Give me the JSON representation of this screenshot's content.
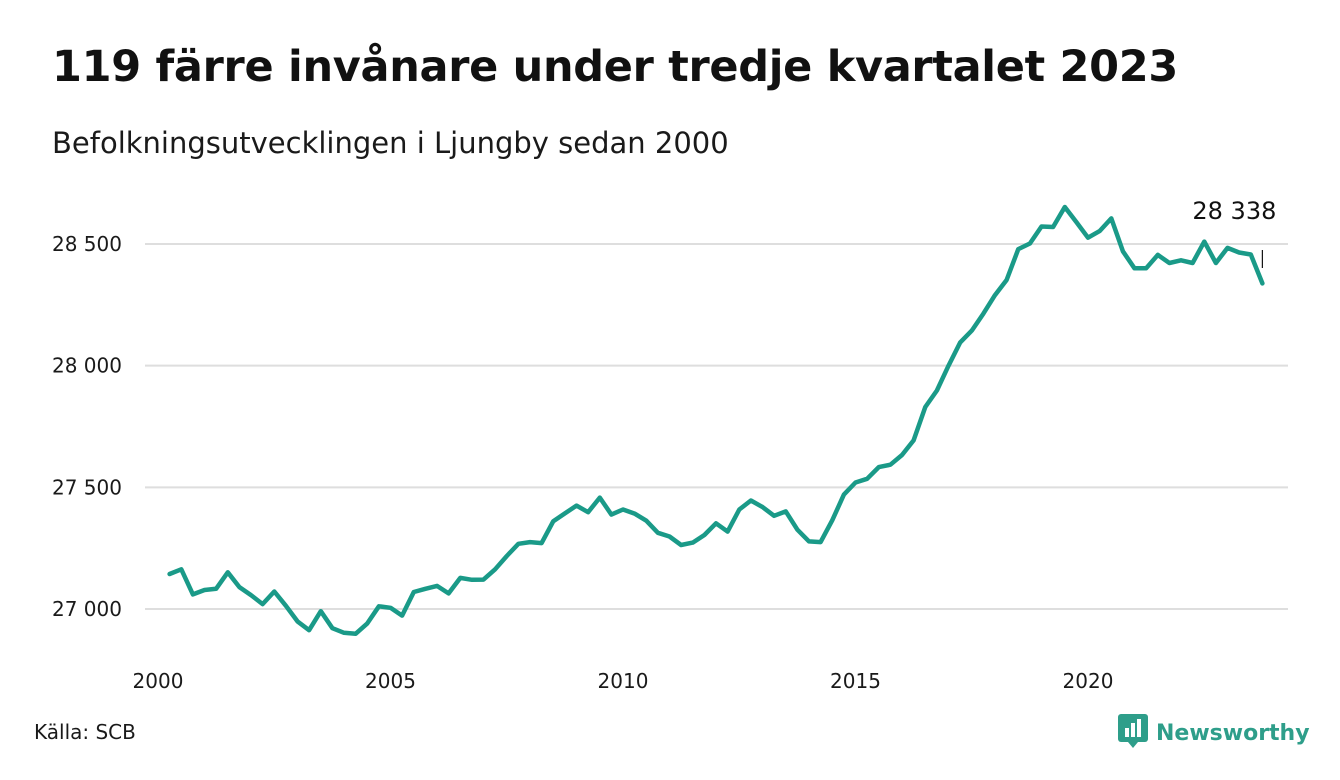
{
  "title": "119 färre invånare under tredje kvartalet 2023",
  "subtitle": "Befolkningsutvecklingen i Ljungby sedan 2000",
  "source": "Källa: SCB",
  "brand": {
    "name": "Newsworthy",
    "color": "#2e9e8a",
    "icon": "newsworthy-logo-icon"
  },
  "chart_data": {
    "type": "line",
    "title": "119 färre invånare under tredje kvartalet 2023",
    "subtitle": "Befolkningsutvecklingen i Ljungby sedan 2000",
    "xlabel": "",
    "ylabel": "",
    "x_ticks": [
      2000,
      2005,
      2010,
      2015,
      2020
    ],
    "x_tick_labels": [
      "2000",
      "2005",
      "2010",
      "2015",
      "2020"
    ],
    "y_ticks": [
      27000,
      27500,
      28000,
      28500
    ],
    "y_tick_labels": [
      "27 000",
      "27 500",
      "28 000",
      "28 500"
    ],
    "ylim": [
      26850,
      28700
    ],
    "xlim": [
      2000,
      2024.5
    ],
    "grid": "horizontal",
    "line_color": "#1a9a88",
    "annotation": {
      "x": 2023.75,
      "y": 28338,
      "label": "28 338"
    },
    "series": [
      {
        "values": [
          [
            2000.25,
            27144
          ],
          [
            2000.5,
            27163
          ],
          [
            2000.75,
            27060
          ],
          [
            2001.0,
            27078
          ],
          [
            2001.25,
            27083
          ],
          [
            2001.5,
            27151
          ],
          [
            2001.75,
            27090
          ],
          [
            2002.0,
            27057
          ],
          [
            2002.25,
            27020
          ],
          [
            2002.5,
            27072
          ],
          [
            2002.75,
            27013
          ],
          [
            2003.0,
            26949
          ],
          [
            2003.25,
            26913
          ],
          [
            2003.5,
            26991
          ],
          [
            2003.75,
            26921
          ],
          [
            2004.0,
            26902
          ],
          [
            2004.25,
            26898
          ],
          [
            2004.5,
            26941
          ],
          [
            2004.75,
            27011
          ],
          [
            2005.0,
            27005
          ],
          [
            2005.25,
            26973
          ],
          [
            2005.5,
            27070
          ],
          [
            2005.75,
            27083
          ],
          [
            2006.0,
            27095
          ],
          [
            2006.25,
            27064
          ],
          [
            2006.5,
            27128
          ],
          [
            2006.75,
            27120
          ],
          [
            2007.0,
            27121
          ],
          [
            2007.25,
            27163
          ],
          [
            2007.5,
            27218
          ],
          [
            2007.75,
            27268
          ],
          [
            2008.0,
            27275
          ],
          [
            2008.25,
            27271
          ],
          [
            2008.5,
            27361
          ],
          [
            2008.75,
            27393
          ],
          [
            2009.0,
            27425
          ],
          [
            2009.25,
            27398
          ],
          [
            2009.5,
            27458
          ],
          [
            2009.75,
            27388
          ],
          [
            2010.0,
            27409
          ],
          [
            2010.25,
            27392
          ],
          [
            2010.5,
            27363
          ],
          [
            2010.75,
            27313
          ],
          [
            2011.0,
            27298
          ],
          [
            2011.25,
            27263
          ],
          [
            2011.5,
            27273
          ],
          [
            2011.75,
            27304
          ],
          [
            2012.0,
            27352
          ],
          [
            2012.25,
            27318
          ],
          [
            2012.5,
            27409
          ],
          [
            2012.75,
            27446
          ],
          [
            2013.0,
            27419
          ],
          [
            2013.25,
            27383
          ],
          [
            2013.5,
            27401
          ],
          [
            2013.75,
            27326
          ],
          [
            2014.0,
            27278
          ],
          [
            2014.25,
            27275
          ],
          [
            2014.5,
            27365
          ],
          [
            2014.75,
            27470
          ],
          [
            2015.0,
            27520
          ],
          [
            2015.25,
            27535
          ],
          [
            2015.5,
            27583
          ],
          [
            2015.75,
            27593
          ],
          [
            2016.0,
            27633
          ],
          [
            2016.25,
            27693
          ],
          [
            2016.5,
            27830
          ],
          [
            2016.75,
            27898
          ],
          [
            2017.0,
            28000
          ],
          [
            2017.25,
            28095
          ],
          [
            2017.5,
            28144
          ],
          [
            2017.75,
            28214
          ],
          [
            2018.0,
            28290
          ],
          [
            2018.25,
            28352
          ],
          [
            2018.5,
            28479
          ],
          [
            2018.75,
            28502
          ],
          [
            2019.0,
            28572
          ],
          [
            2019.25,
            28570
          ],
          [
            2019.5,
            28652
          ],
          [
            2019.75,
            28590
          ],
          [
            2020.0,
            28526
          ],
          [
            2020.25,
            28553
          ],
          [
            2020.5,
            28605
          ],
          [
            2020.75,
            28470
          ],
          [
            2021.0,
            28400
          ],
          [
            2021.25,
            28400
          ],
          [
            2021.5,
            28455
          ],
          [
            2021.75,
            28422
          ],
          [
            2022.0,
            28433
          ],
          [
            2022.25,
            28422
          ],
          [
            2022.5,
            28510
          ],
          [
            2022.75,
            28422
          ],
          [
            2023.0,
            28484
          ],
          [
            2023.25,
            28465
          ],
          [
            2023.5,
            28457
          ],
          [
            2023.75,
            28338
          ]
        ]
      }
    ]
  }
}
